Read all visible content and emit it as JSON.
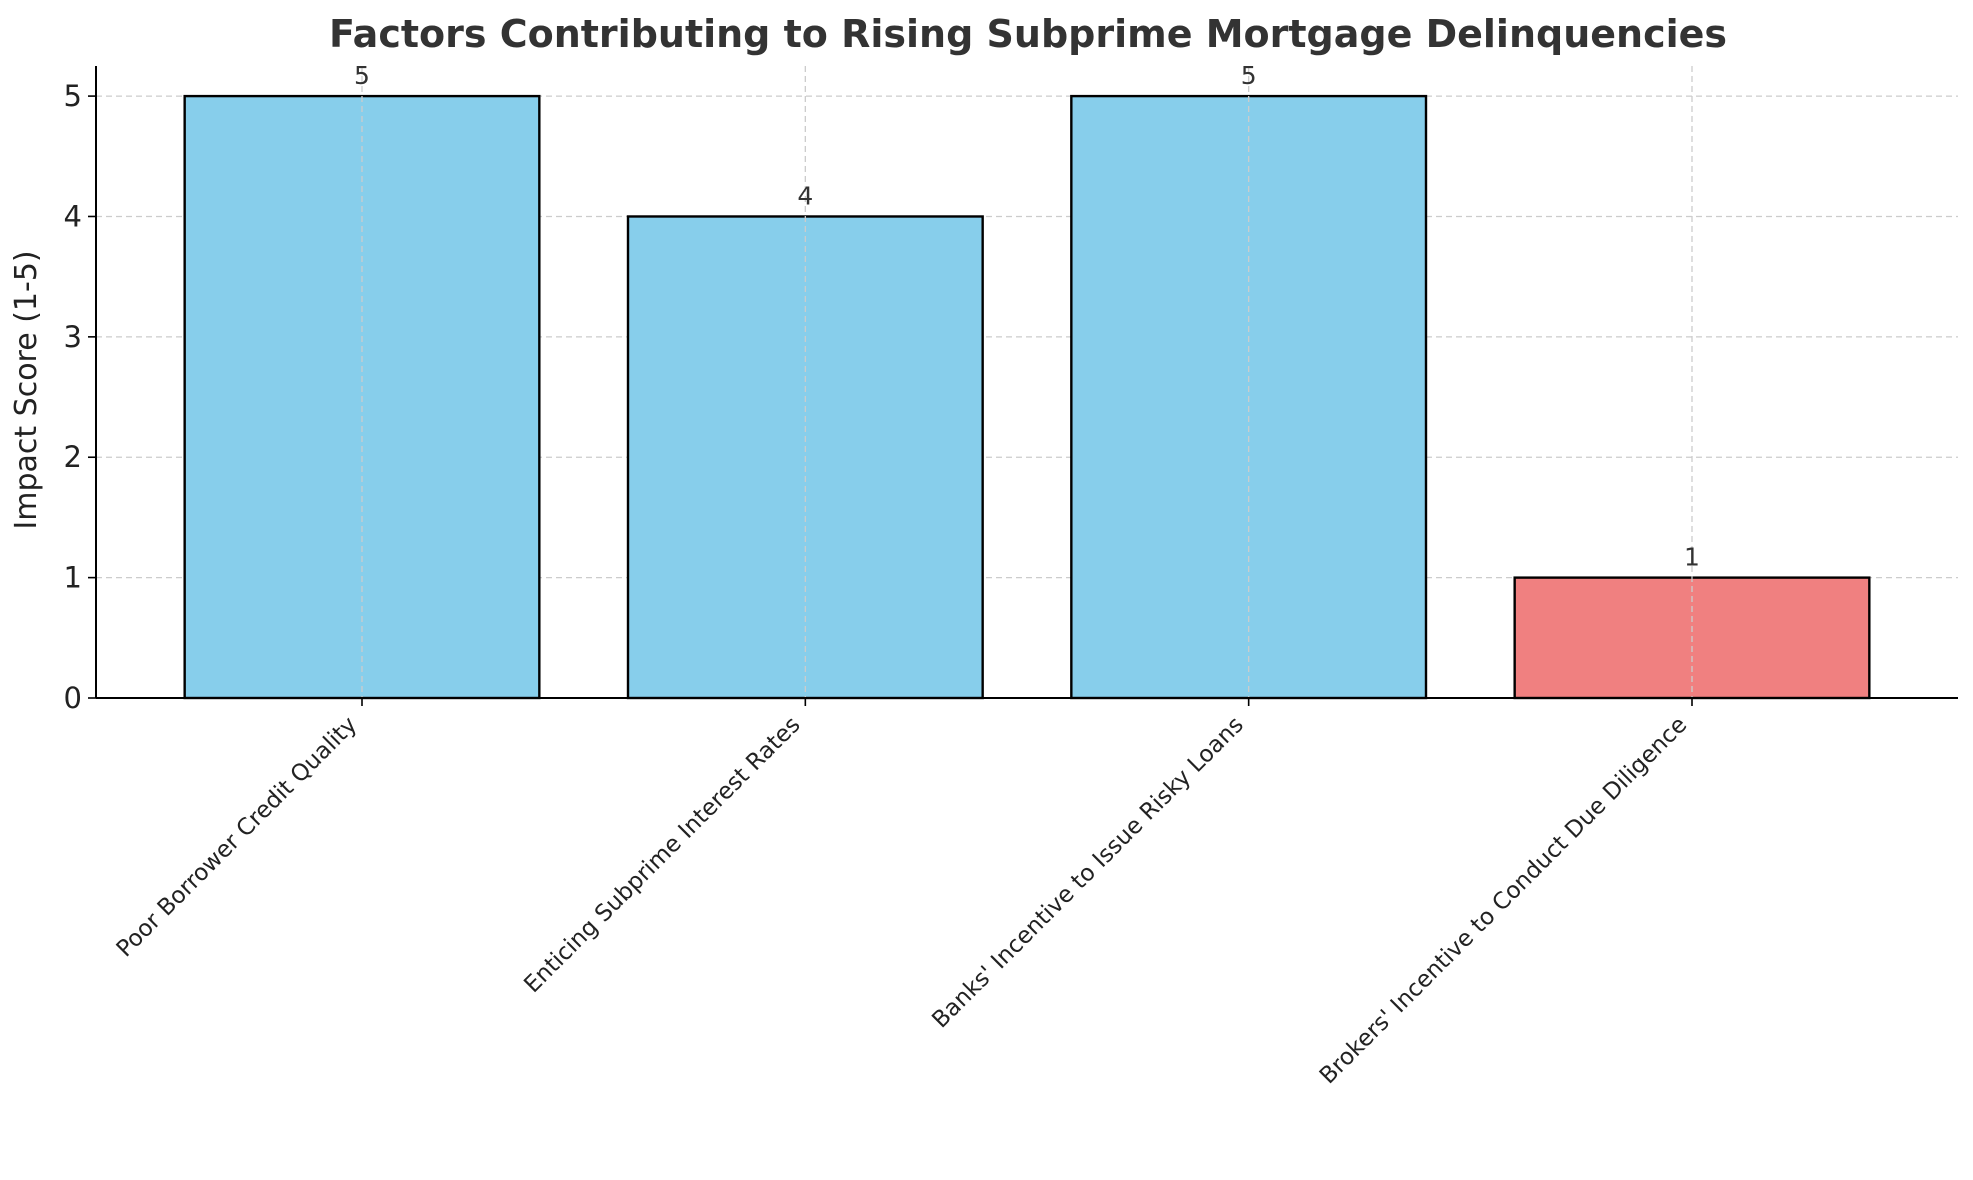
{
  "chart_data": {
    "type": "bar",
    "title": "Factors Contributing to Rising Subprime Mortgage Delinquencies",
    "xlabel": "",
    "ylabel": "Impact Score (1-5)",
    "categories": [
      "Poor Borrower Credit Quality",
      "Enticing Subprime Interest Rates",
      "Banks' Incentive to Issue Risky Loans",
      "Brokers' Incentive to Conduct Due Diligence"
    ],
    "values": [
      5,
      4,
      5,
      1
    ],
    "data_labels": [
      "5",
      "4",
      "5",
      "1"
    ],
    "bar_colors": [
      "#87CEEB",
      "#87CEEB",
      "#87CEEB",
      "#F08080"
    ],
    "edge_color": "#000000",
    "ylim": [
      0,
      5.25
    ],
    "yticks": [
      "0",
      "1",
      "2",
      "3",
      "4",
      "5"
    ],
    "grid": true
  }
}
